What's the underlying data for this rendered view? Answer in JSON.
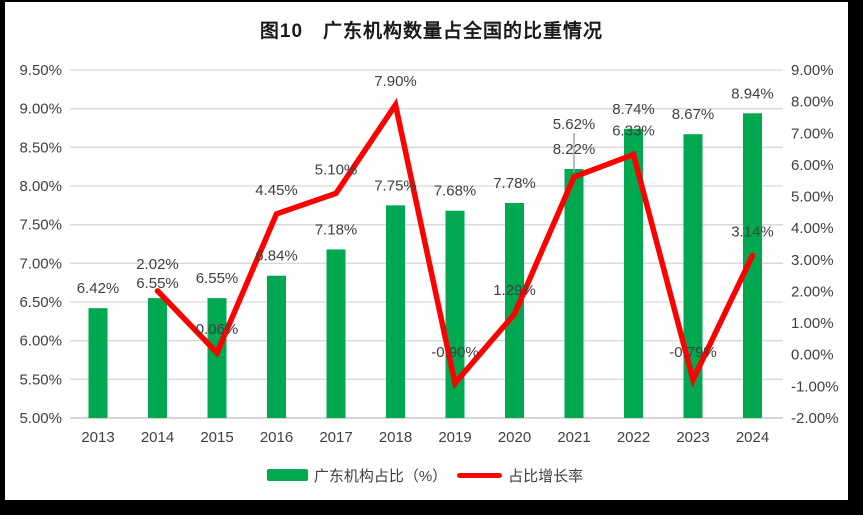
{
  "chart_data": {
    "type": "combo-bar-line",
    "title": "图10　广东机构数量占全国的比重情况",
    "categories": [
      "2013",
      "2014",
      "2015",
      "2016",
      "2017",
      "2018",
      "2019",
      "2020",
      "2021",
      "2022",
      "2023",
      "2024"
    ],
    "series": [
      {
        "name": "广东机构占比（%）",
        "type": "bar",
        "axis": "left",
        "color": "#00A84F",
        "values": [
          6.42,
          6.55,
          6.55,
          6.84,
          7.18,
          7.75,
          7.68,
          7.78,
          8.22,
          8.74,
          8.67,
          8.94
        ],
        "labels": [
          "6.42%",
          "6.55%",
          "6.55%",
          "6.84%",
          "7.18%",
          "7.75%",
          "7.68%",
          "7.78%",
          "8.22%",
          "8.74%",
          "8.67%",
          "8.94%"
        ]
      },
      {
        "name": "占比增长率",
        "type": "line",
        "axis": "right",
        "color": "#FF0000",
        "values": [
          null,
          2.02,
          0.06,
          4.45,
          5.1,
          7.9,
          -0.9,
          1.29,
          5.62,
          6.33,
          -0.79,
          3.14
        ],
        "labels": [
          null,
          "2.02%",
          "0.06%",
          "4.45%",
          "5.10%",
          "7.90%",
          "-0.90%",
          "1.29%",
          "5.62%",
          "6.33%",
          "-0.79%",
          "3.14%"
        ]
      }
    ],
    "left_axis": {
      "min": 5.0,
      "max": 9.5,
      "step": 0.5,
      "tick_labels": [
        "5.00%",
        "5.50%",
        "6.00%",
        "6.50%",
        "7.00%",
        "7.50%",
        "8.00%",
        "8.50%",
        "9.00%",
        "9.50%"
      ]
    },
    "right_axis": {
      "min": -2.0,
      "max": 9.0,
      "step": 1.0,
      "tick_labels": [
        "-2.00%",
        "-1.00%",
        "0.00%",
        "1.00%",
        "2.00%",
        "3.00%",
        "4.00%",
        "5.00%",
        "6.00%",
        "7.00%",
        "8.00%",
        "9.00%"
      ]
    },
    "grid": true,
    "legend_position": "bottom",
    "colors": {
      "bar": "#00A84F",
      "line": "#FF0000",
      "grid": "#D9D9D9",
      "axis_line": "#D6D6D6",
      "label": "#404040",
      "title": "#1A1A1A",
      "leader": "#A6A6A6",
      "frame": "#000000",
      "background": "#FFFFFF"
    }
  },
  "legend": {
    "items": [
      {
        "label": "广东机构占比（%）",
        "swatch": "bar-swatch",
        "color": "#00A84F"
      },
      {
        "label": "占比增长率",
        "swatch": "line-swatch",
        "color": "#FF0000"
      }
    ]
  }
}
